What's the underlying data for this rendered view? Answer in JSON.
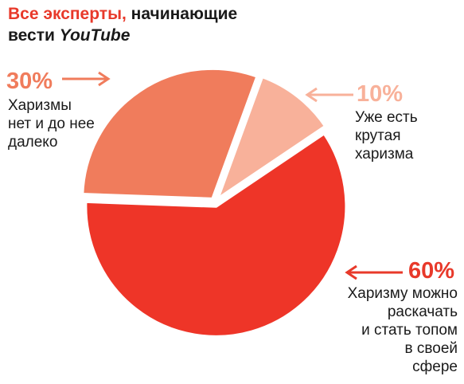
{
  "title": {
    "part1": "Все эксперты,",
    "part2": " начинающие",
    "part3": "вести ",
    "part4": "YouTube"
  },
  "colors": {
    "accent": "#e8392a",
    "slice_60": "#ee3528",
    "slice_30": "#f07c5c",
    "slice_10": "#f8b19a"
  },
  "chart_data": {
    "type": "pie",
    "title": "Все эксперты, начинающие вести YouTube",
    "slices": [
      {
        "label": "10%",
        "value": 10,
        "text": [
          "Уже есть",
          "крутая",
          "харизма"
        ],
        "color": "#f8b19a"
      },
      {
        "label": "60%",
        "value": 60,
        "text": [
          "Харизму можно",
          "раскачать",
          "и стать топом",
          "в своей",
          "сфере"
        ],
        "color": "#ee3528"
      },
      {
        "label": "30%",
        "value": 30,
        "text": [
          "Харизмы",
          "нет и до нее",
          "далеко"
        ],
        "color": "#f07c5c"
      }
    ]
  }
}
